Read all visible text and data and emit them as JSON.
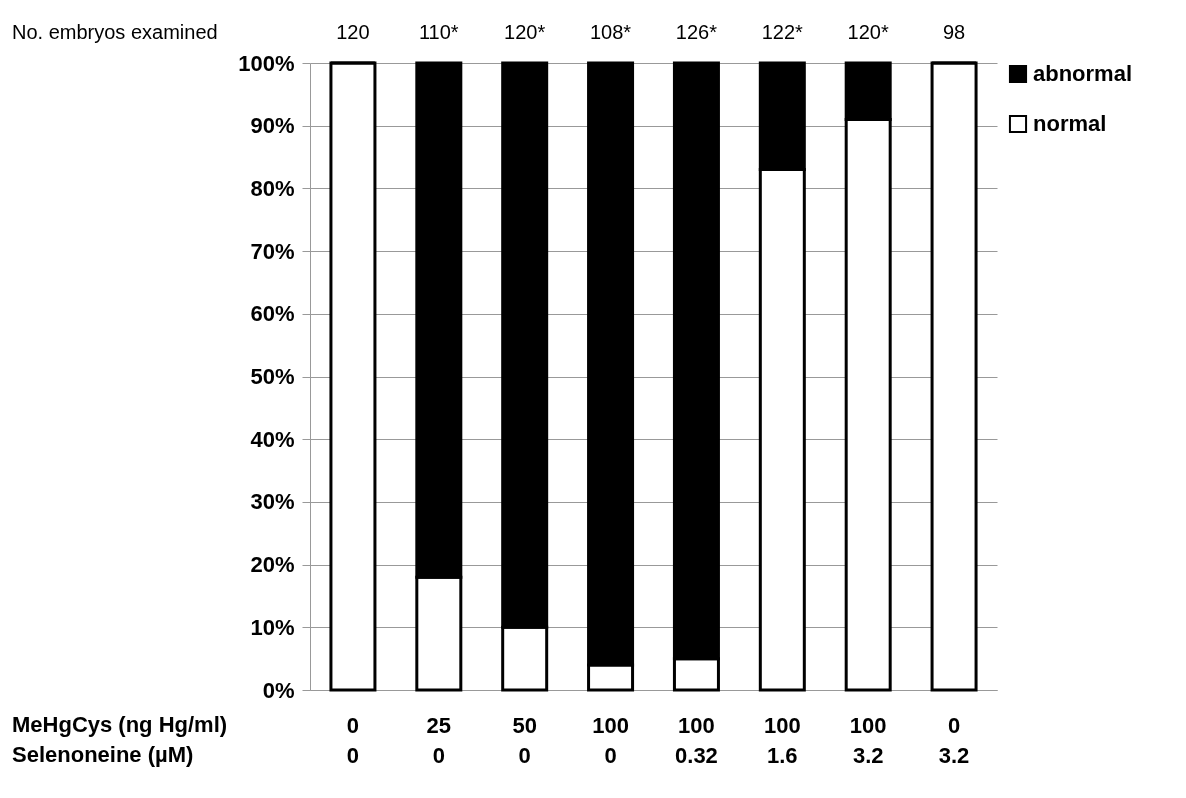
{
  "chart_data": {
    "type": "bar",
    "stacked": true,
    "categories": [
      "0\n0",
      "25\n0",
      "50\n0",
      "100\n0",
      "100\n0.32",
      "100\n1.6",
      "100\n3.2",
      "0\n3.2"
    ],
    "series": [
      {
        "name": "normal",
        "color": "#ffffff",
        "values": [
          100,
          18,
          10,
          4,
          5,
          83,
          91,
          100
        ]
      },
      {
        "name": "abnormal",
        "color": "#000000",
        "values": [
          0,
          82,
          90,
          96,
          95,
          17,
          9,
          0
        ]
      }
    ],
    "ylim": [
      0,
      100
    ],
    "yticks": [
      {
        "value": 0,
        "label": "0%"
      },
      {
        "value": 10,
        "label": "10%"
      },
      {
        "value": 20,
        "label": "20%"
      },
      {
        "value": 30,
        "label": "30%"
      },
      {
        "value": 40,
        "label": "40%"
      },
      {
        "value": 50,
        "label": "50%"
      },
      {
        "value": 60,
        "label": "60%"
      },
      {
        "value": 70,
        "label": "70%"
      },
      {
        "value": 80,
        "label": "80%"
      },
      {
        "value": 90,
        "label": "90%"
      },
      {
        "value": 100,
        "label": "100%"
      }
    ],
    "grid": "y",
    "legend": "right",
    "annotations": [
      "No. embryos examined",
      "MeHgCys (ng Hg/ml)",
      "Selenoneine (µM)",
      "120",
      "110*",
      "120*",
      "108*",
      "126*",
      "122*",
      "120*",
      "98"
    ]
  }
}
